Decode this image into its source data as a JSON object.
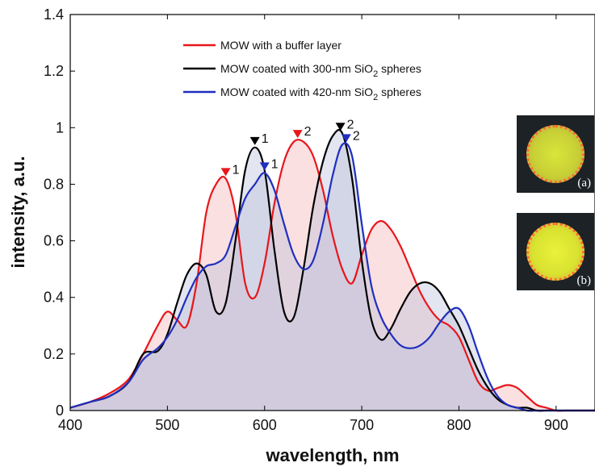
{
  "chart_data": {
    "type": "line",
    "xlabel": "wavelength, nm",
    "ylabel": "intensity, a.u.",
    "xlim": [
      400,
      940
    ],
    "ylim": [
      0,
      1.4
    ],
    "x_ticks": [
      "400",
      "500",
      "600",
      "700",
      "800",
      "900"
    ],
    "y_ticks": [
      "0",
      "0.2",
      "0.4",
      "0.6",
      "0.8",
      "1",
      "1.2",
      "1.4"
    ],
    "grid": false,
    "legend_position": "top",
    "series": [
      {
        "name": "MOW with a buffer layer",
        "color": "#e8161b",
        "fill": "#f4b6b8",
        "x": [
          400,
          420,
          440,
          460,
          475,
          490,
          500,
          510,
          520,
          530,
          540,
          550,
          560,
          570,
          580,
          590,
          600,
          610,
          620,
          630,
          640,
          650,
          660,
          670,
          680,
          690,
          700,
          710,
          720,
          730,
          740,
          750,
          760,
          770,
          780,
          790,
          800,
          810,
          820,
          830,
          840,
          850,
          860,
          870,
          880,
          890,
          900,
          910,
          920,
          940
        ],
        "y": [
          0.01,
          0.03,
          0.06,
          0.11,
          0.2,
          0.3,
          0.35,
          0.32,
          0.3,
          0.45,
          0.7,
          0.8,
          0.82,
          0.7,
          0.45,
          0.4,
          0.52,
          0.73,
          0.88,
          0.95,
          0.95,
          0.9,
          0.78,
          0.62,
          0.5,
          0.45,
          0.55,
          0.64,
          0.67,
          0.64,
          0.58,
          0.5,
          0.42,
          0.36,
          0.32,
          0.3,
          0.26,
          0.18,
          0.1,
          0.07,
          0.08,
          0.09,
          0.08,
          0.05,
          0.02,
          0.01,
          0.0,
          0.0,
          0.0,
          0.0
        ]
      },
      {
        "name": "MOW coated with 300-nm SiO2 spheres",
        "color": "#000000",
        "fill": "#bcc0dc",
        "x": [
          400,
          420,
          440,
          460,
          475,
          490,
          500,
          510,
          520,
          530,
          540,
          550,
          560,
          570,
          580,
          590,
          600,
          610,
          620,
          630,
          640,
          650,
          660,
          670,
          680,
          690,
          700,
          710,
          720,
          730,
          740,
          750,
          760,
          770,
          780,
          790,
          800,
          810,
          820,
          830,
          840,
          850,
          860,
          870,
          880,
          890,
          900,
          910,
          920,
          940
        ],
        "y": [
          0.01,
          0.03,
          0.05,
          0.1,
          0.2,
          0.21,
          0.27,
          0.38,
          0.48,
          0.52,
          0.48,
          0.35,
          0.38,
          0.6,
          0.85,
          0.93,
          0.85,
          0.57,
          0.35,
          0.33,
          0.5,
          0.72,
          0.88,
          0.97,
          0.98,
          0.82,
          0.53,
          0.32,
          0.25,
          0.29,
          0.36,
          0.42,
          0.45,
          0.45,
          0.42,
          0.36,
          0.3,
          0.22,
          0.14,
          0.08,
          0.04,
          0.02,
          0.01,
          0.01,
          0.0,
          0.0,
          0.0,
          0.0,
          0.0,
          0.0
        ]
      },
      {
        "name": "MOW coated with 420-nm SiO2 spheres",
        "color": "#1f2fbf",
        "fill": "#bcc0dc",
        "x": [
          400,
          420,
          440,
          460,
          475,
          490,
          500,
          510,
          520,
          530,
          540,
          550,
          560,
          570,
          580,
          590,
          600,
          610,
          620,
          630,
          640,
          650,
          660,
          670,
          680,
          690,
          700,
          710,
          720,
          730,
          740,
          750,
          760,
          770,
          780,
          790,
          800,
          810,
          820,
          830,
          840,
          850,
          860,
          870,
          880,
          890,
          900,
          910,
          920,
          940
        ],
        "y": [
          0.01,
          0.03,
          0.05,
          0.1,
          0.18,
          0.22,
          0.26,
          0.32,
          0.4,
          0.47,
          0.51,
          0.52,
          0.55,
          0.65,
          0.75,
          0.8,
          0.84,
          0.78,
          0.66,
          0.55,
          0.5,
          0.53,
          0.66,
          0.83,
          0.94,
          0.9,
          0.66,
          0.44,
          0.33,
          0.27,
          0.23,
          0.22,
          0.23,
          0.26,
          0.31,
          0.35,
          0.36,
          0.3,
          0.2,
          0.11,
          0.05,
          0.02,
          0.01,
          0.0,
          0.0,
          0.0,
          0.0,
          0.0,
          0.0,
          0.0
        ]
      }
    ],
    "legend_labels": [
      {
        "text": "MOW with a buffer layer",
        "sub": ""
      },
      {
        "text": "MOW coated with 300-nm SiO",
        "sub": "2",
        "tail": " spheres"
      },
      {
        "text": "MOW coated with 420-nm SiO",
        "sub": "2",
        "tail": " spheres"
      }
    ],
    "peak_markers": [
      {
        "series": 0,
        "x": 560,
        "y": 0.82,
        "label": "1"
      },
      {
        "series": 0,
        "x": 634,
        "y": 0.955,
        "label": "2"
      },
      {
        "series": 1,
        "x": 590,
        "y": 0.93,
        "label": "1"
      },
      {
        "series": 1,
        "x": 678,
        "y": 0.98,
        "label": "2"
      },
      {
        "series": 2,
        "x": 600,
        "y": 0.84,
        "label": "1"
      },
      {
        "series": 2,
        "x": 684,
        "y": 0.94,
        "label": "2"
      }
    ]
  },
  "insets": {
    "a_label": "(a)",
    "b_label": "(b)"
  }
}
